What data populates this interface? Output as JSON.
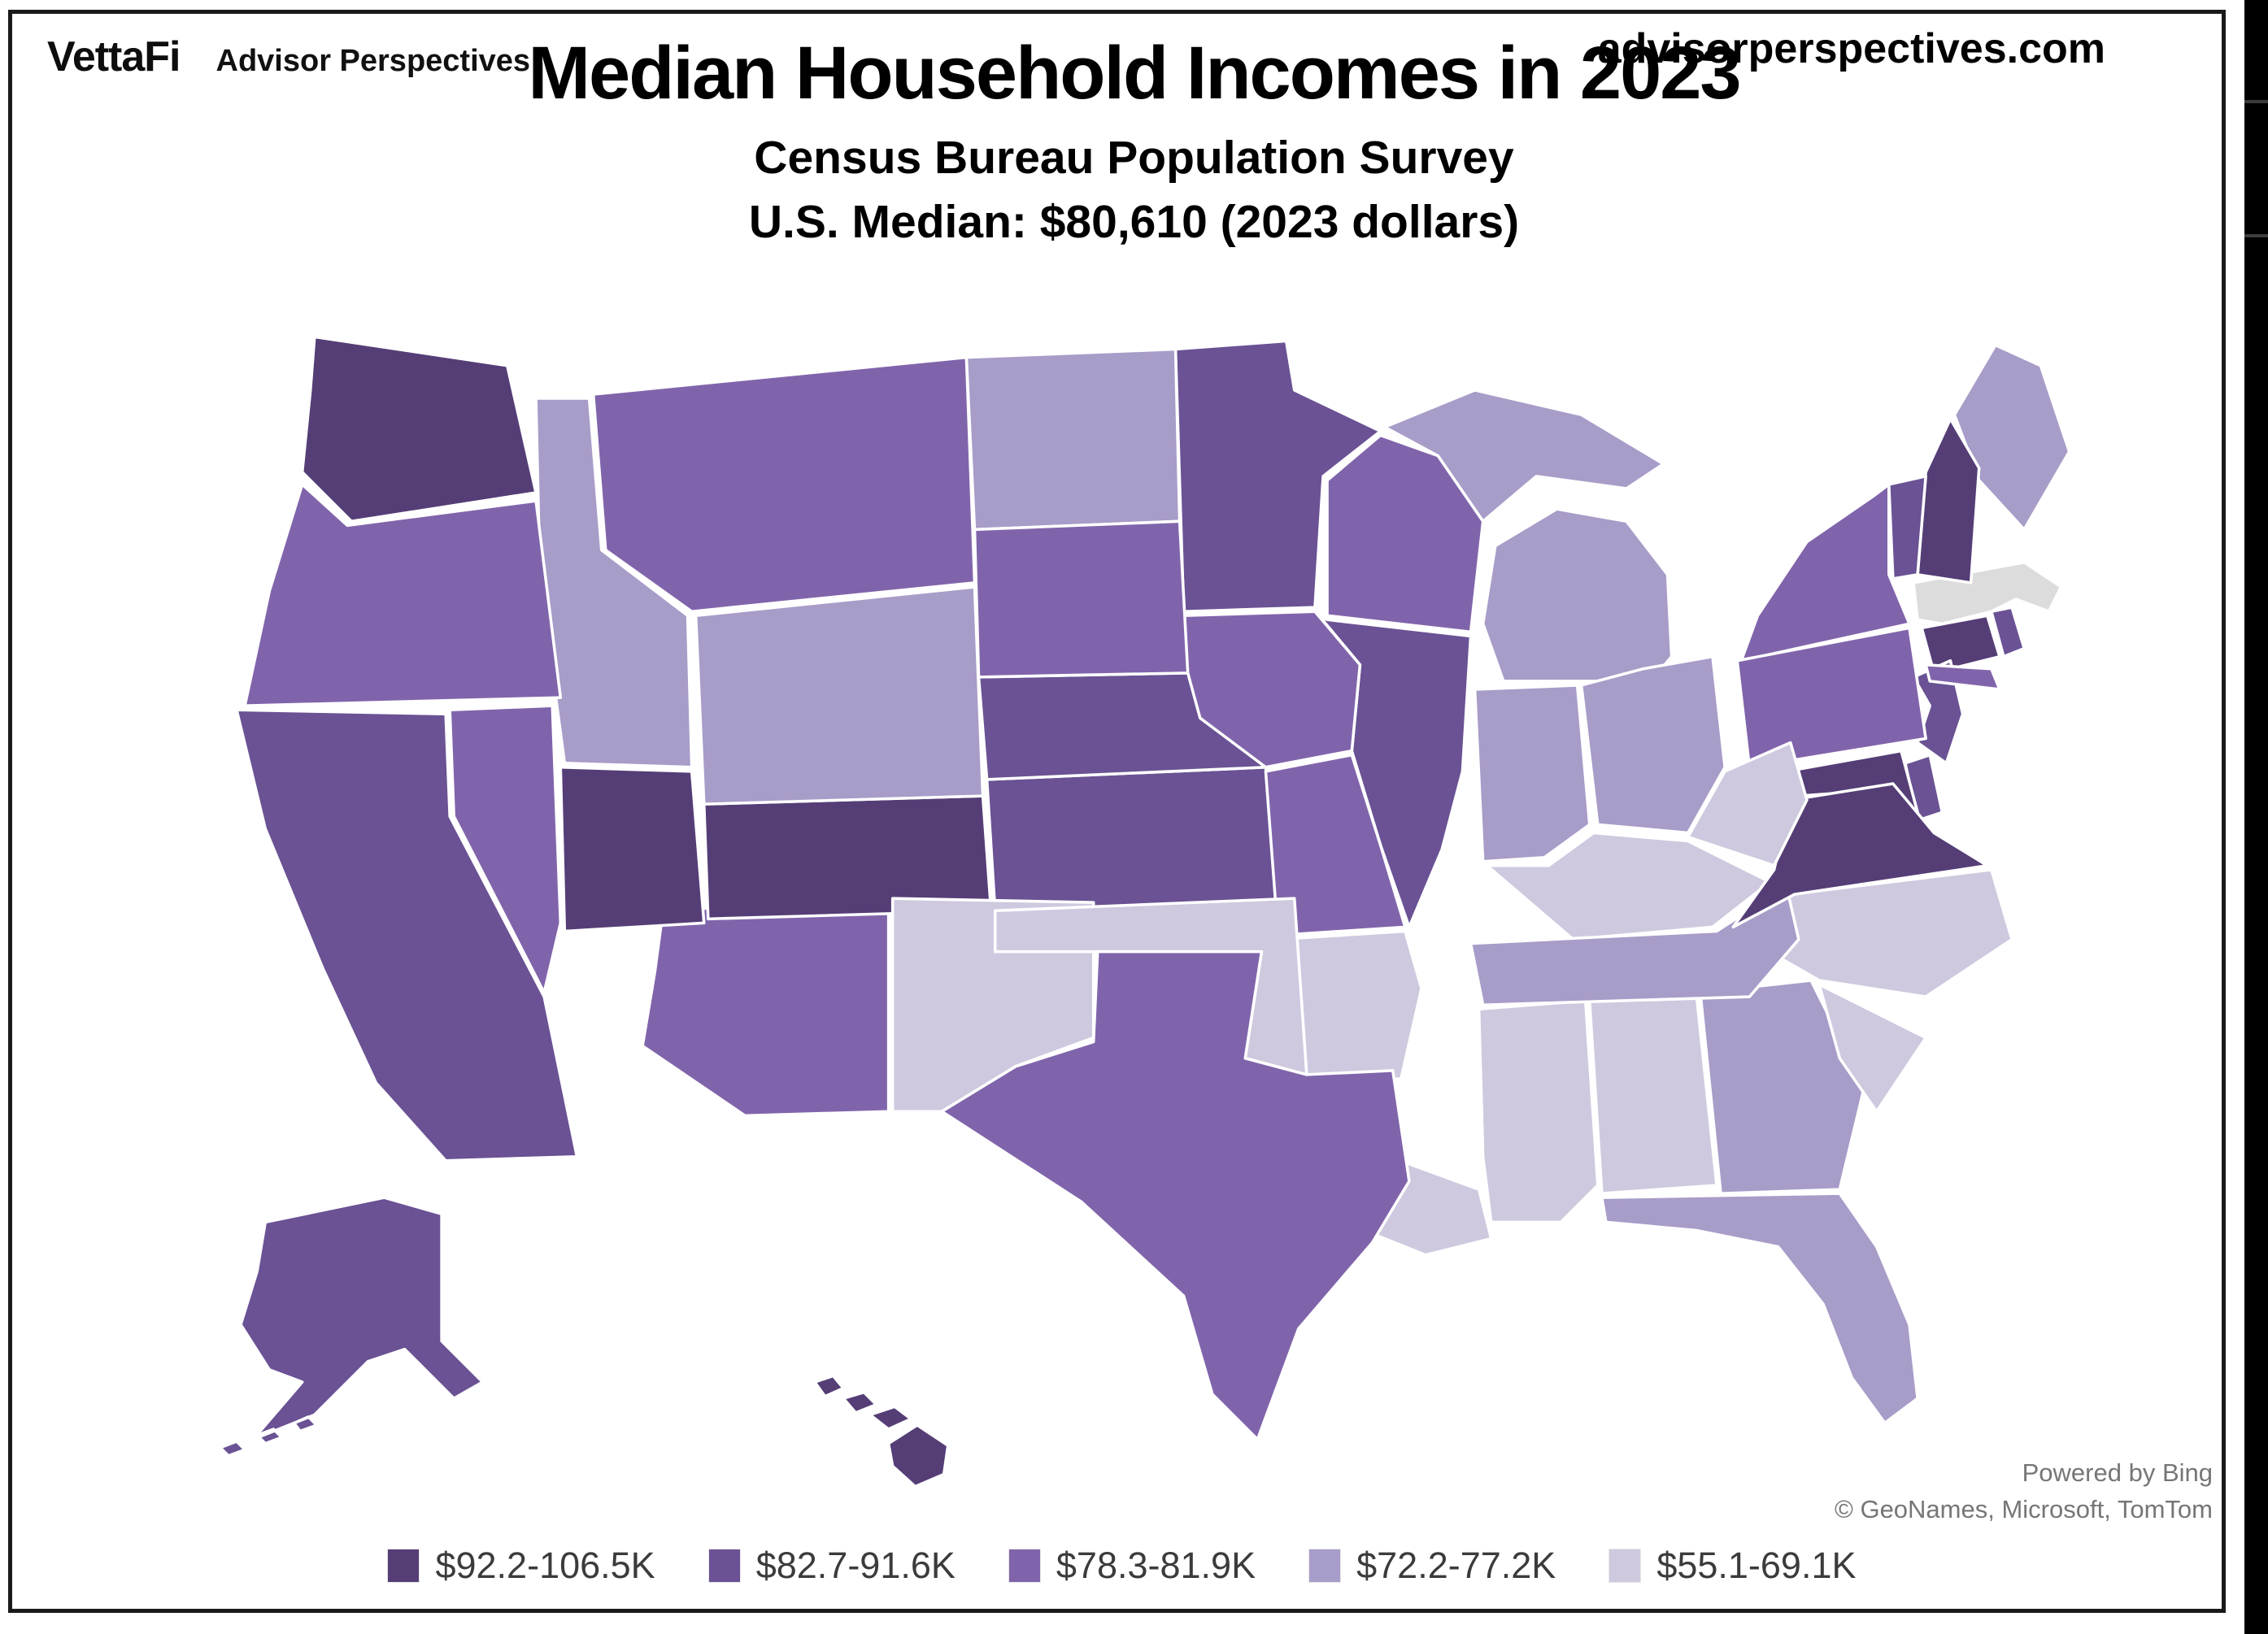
{
  "header": {
    "logo_text": "VettaFi",
    "logo_subtext": "Advisor Perspectives",
    "website": "advisorperspectives.com"
  },
  "title": {
    "main": "Median Household Incomes in 2023",
    "subtitle": "Census Bureau Population Survey",
    "median_line": "U.S. Median: $80,610 (2023 dollars)"
  },
  "map_attribution": {
    "line1": "Powered by Bing",
    "line2": "© GeoNames, Microsoft, TomTom"
  },
  "legend": {
    "items": [
      {
        "label": "$92.2-106.5K",
        "color": "#553E76"
      },
      {
        "label": "$82.7-91.6K",
        "color": "#6A5294"
      },
      {
        "label": "$78.3-81.9K",
        "color": "#8064AB"
      },
      {
        "label": "$72.2-77.2K",
        "color": "#A89CC8"
      },
      {
        "label": "$55.1-69.1K",
        "color": "#CFC9DF"
      }
    ]
  },
  "no_data_color": "#DCDCDC",
  "state_border_color": "#FFFFFF",
  "chart_data": {
    "type": "choropleth",
    "region": "United States (states)",
    "title": "Median Household Incomes in 2023",
    "source": "Census Bureau Population Survey",
    "us_median": "$80,610",
    "unit": "2023 dollars",
    "bins": [
      "$92.2-106.5K",
      "$82.7-91.6K",
      "$78.3-81.9K",
      "$72.2-77.2K",
      "$55.1-69.1K"
    ],
    "legend_position": "bottom-center",
    "no_data_states": [
      "MA"
    ],
    "states": [
      {
        "id": "AL",
        "name": "Alabama",
        "bin": 4
      },
      {
        "id": "AK",
        "name": "Alaska",
        "bin": 1
      },
      {
        "id": "AZ",
        "name": "Arizona",
        "bin": 2
      },
      {
        "id": "AR",
        "name": "Arkansas",
        "bin": 4
      },
      {
        "id": "CA",
        "name": "California",
        "bin": 1
      },
      {
        "id": "CO",
        "name": "Colorado",
        "bin": 0
      },
      {
        "id": "CT",
        "name": "Connecticut",
        "bin": 0
      },
      {
        "id": "DE",
        "name": "Delaware",
        "bin": 1
      },
      {
        "id": "FL",
        "name": "Florida",
        "bin": 3
      },
      {
        "id": "GA",
        "name": "Georgia",
        "bin": 3
      },
      {
        "id": "HI",
        "name": "Hawaii",
        "bin": 0
      },
      {
        "id": "ID",
        "name": "Idaho",
        "bin": 3
      },
      {
        "id": "IL",
        "name": "Illinois",
        "bin": 1
      },
      {
        "id": "IN",
        "name": "Indiana",
        "bin": 3
      },
      {
        "id": "IA",
        "name": "Iowa",
        "bin": 2
      },
      {
        "id": "KS",
        "name": "Kansas",
        "bin": 1
      },
      {
        "id": "KY",
        "name": "Kentucky",
        "bin": 4
      },
      {
        "id": "LA",
        "name": "Louisiana",
        "bin": 4
      },
      {
        "id": "ME",
        "name": "Maine",
        "bin": 3
      },
      {
        "id": "MD",
        "name": "Maryland",
        "bin": 0
      },
      {
        "id": "MA",
        "name": "Massachusetts",
        "bin": null
      },
      {
        "id": "MI",
        "name": "Michigan",
        "bin": 3
      },
      {
        "id": "MN",
        "name": "Minnesota",
        "bin": 1
      },
      {
        "id": "MS",
        "name": "Mississippi",
        "bin": 4
      },
      {
        "id": "MO",
        "name": "Missouri",
        "bin": 2
      },
      {
        "id": "MT",
        "name": "Montana",
        "bin": 2
      },
      {
        "id": "NE",
        "name": "Nebraska",
        "bin": 1
      },
      {
        "id": "NV",
        "name": "Nevada",
        "bin": 2
      },
      {
        "id": "NH",
        "name": "New Hampshire",
        "bin": 0
      },
      {
        "id": "NJ",
        "name": "New Jersey",
        "bin": 1
      },
      {
        "id": "NM",
        "name": "New Mexico",
        "bin": 4
      },
      {
        "id": "NY",
        "name": "New York",
        "bin": 2
      },
      {
        "id": "NC",
        "name": "North Carolina",
        "bin": 4
      },
      {
        "id": "ND",
        "name": "North Dakota",
        "bin": 3
      },
      {
        "id": "OH",
        "name": "Ohio",
        "bin": 3
      },
      {
        "id": "OK",
        "name": "Oklahoma",
        "bin": 4
      },
      {
        "id": "OR",
        "name": "Oregon",
        "bin": 2
      },
      {
        "id": "PA",
        "name": "Pennsylvania",
        "bin": 2
      },
      {
        "id": "RI",
        "name": "Rhode Island",
        "bin": 1
      },
      {
        "id": "SC",
        "name": "South Carolina",
        "bin": 4
      },
      {
        "id": "SD",
        "name": "South Dakota",
        "bin": 2
      },
      {
        "id": "TN",
        "name": "Tennessee",
        "bin": 3
      },
      {
        "id": "TX",
        "name": "Texas",
        "bin": 2
      },
      {
        "id": "UT",
        "name": "Utah",
        "bin": 0
      },
      {
        "id": "VT",
        "name": "Vermont",
        "bin": 1
      },
      {
        "id": "VA",
        "name": "Virginia",
        "bin": 0
      },
      {
        "id": "WA",
        "name": "Washington",
        "bin": 0
      },
      {
        "id": "WV",
        "name": "West Virginia",
        "bin": 4
      },
      {
        "id": "WI",
        "name": "Wisconsin",
        "bin": 2
      },
      {
        "id": "WY",
        "name": "Wyoming",
        "bin": 3
      }
    ]
  }
}
